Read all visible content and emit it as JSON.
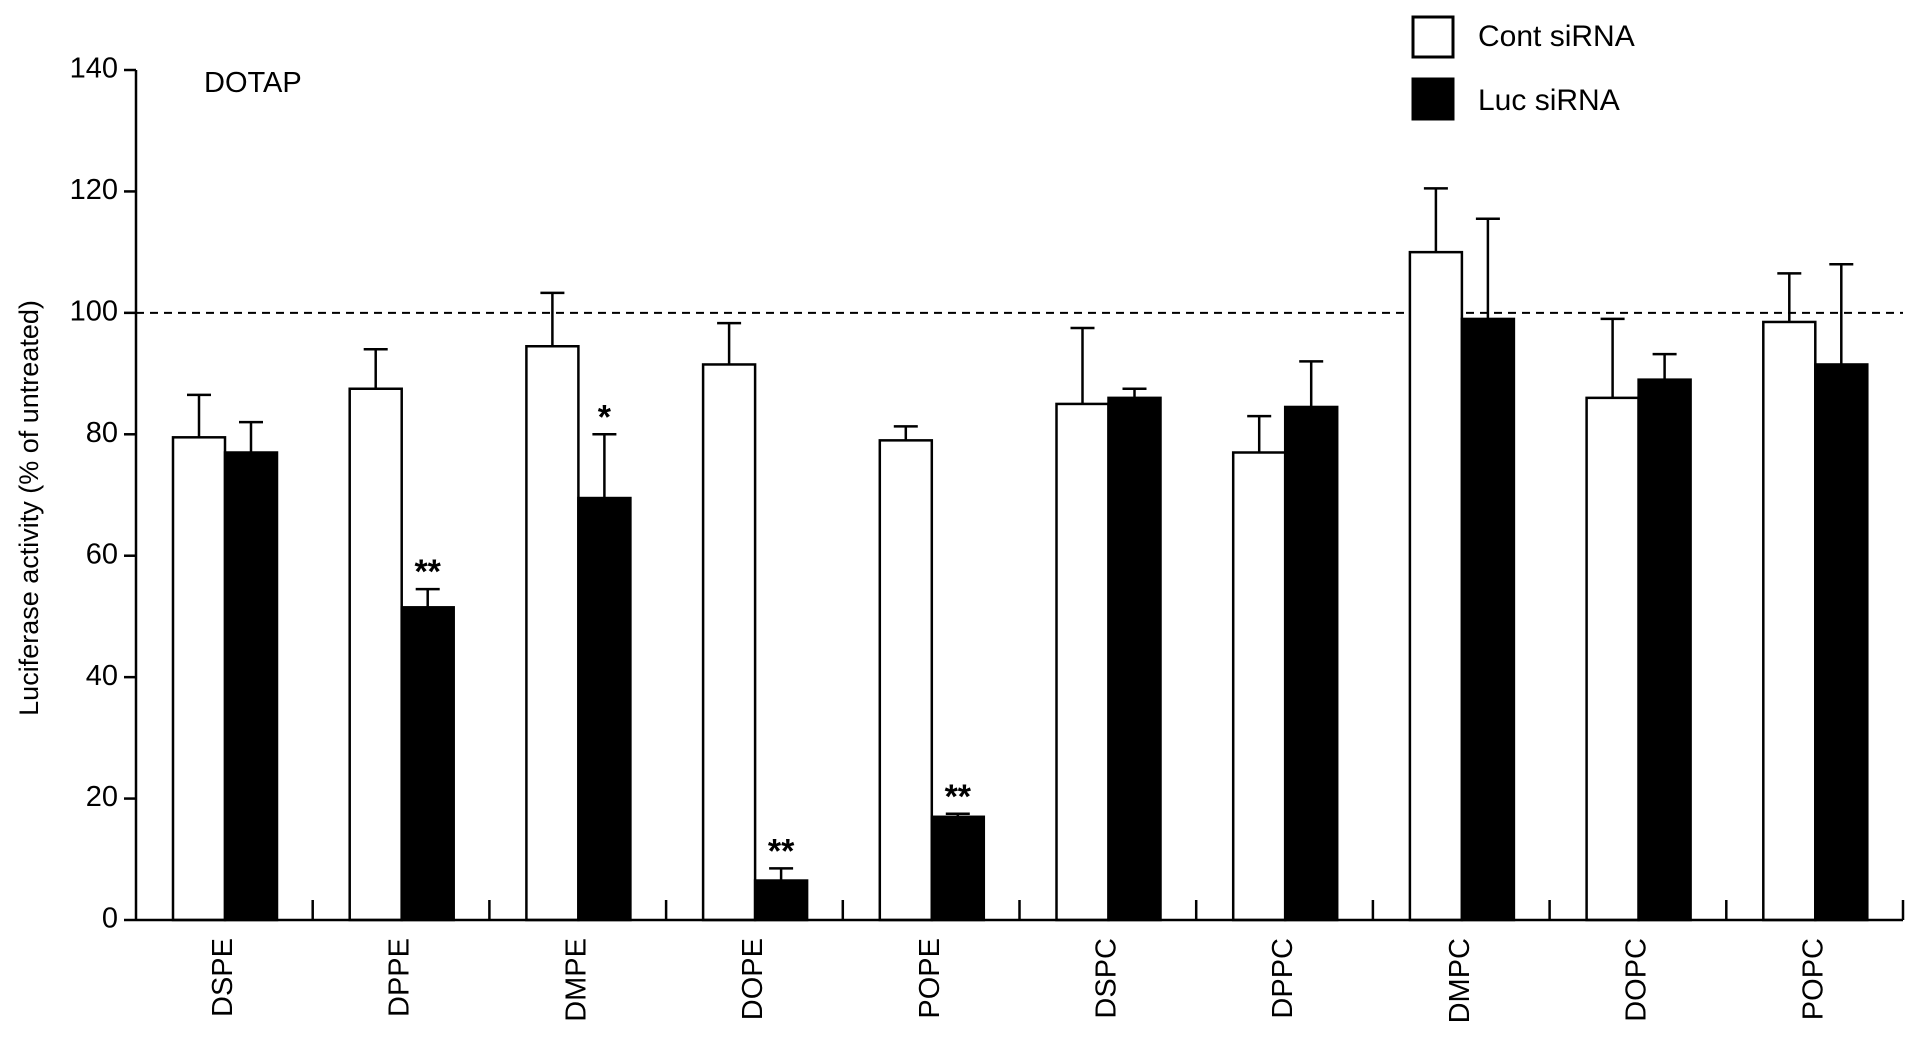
{
  "chart_data": {
    "type": "bar",
    "annotation": "DOTAP",
    "ylabel": "Luciferase activity (% of untreated)",
    "xlabel": "",
    "ylim": [
      0,
      140
    ],
    "yticks": [
      "0",
      "20",
      "40",
      "60",
      "80",
      "100",
      "120",
      "140"
    ],
    "reference_line": {
      "value": 100,
      "style": "dashed"
    },
    "grid": false,
    "legend_position": "top-right",
    "categories": [
      "DSPE",
      "DPPE",
      "DMPE",
      "DOPE",
      "POPE",
      "DSPC",
      "DPPC",
      "DMPC",
      "DOPC",
      "POPC"
    ],
    "series": [
      {
        "name": "Cont siRNA",
        "fill": "#ffffff",
        "values": [
          79.5,
          87.5,
          94.5,
          91.5,
          79,
          85,
          77,
          110,
          86,
          98.5
        ],
        "errors": [
          7,
          6.5,
          8.8,
          6.8,
          2.3,
          12.5,
          6,
          10.5,
          13,
          8
        ],
        "significance": [
          "",
          "",
          "",
          "",
          "",
          "",
          "",
          "",
          "",
          ""
        ]
      },
      {
        "name": "Luc siRNA",
        "fill": "#000000",
        "values": [
          77,
          51.5,
          69.5,
          6.5,
          17,
          86,
          84.5,
          99,
          89,
          91.5
        ],
        "errors": [
          5,
          3,
          10.5,
          2,
          0.5,
          1.5,
          7.5,
          16.5,
          4.2,
          16.5
        ],
        "significance": [
          "",
          "**",
          "*",
          "**",
          "**",
          "",
          "",
          "",
          "",
          ""
        ]
      }
    ]
  }
}
